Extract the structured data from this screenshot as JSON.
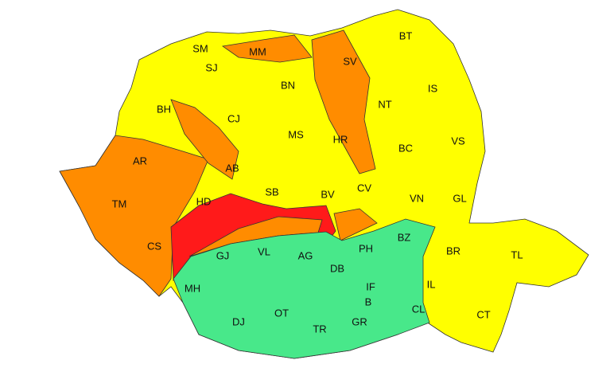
{
  "colors": {
    "yellow": "#ffff00",
    "orange": "#ff8c00",
    "red": "#ff1a1a",
    "green": "#48e88a",
    "background": "#ffffff",
    "border": "#333333"
  },
  "counties": [
    {
      "code": "SM",
      "level": "yellow"
    },
    {
      "code": "MM",
      "level": "orange"
    },
    {
      "code": "SV",
      "level": "orange"
    },
    {
      "code": "BT",
      "level": "yellow"
    },
    {
      "code": "SJ",
      "level": "yellow"
    },
    {
      "code": "BN",
      "level": "yellow"
    },
    {
      "code": "IS",
      "level": "yellow"
    },
    {
      "code": "BH",
      "level": "yellow"
    },
    {
      "code": "CJ",
      "level": "yellow"
    },
    {
      "code": "NT",
      "level": "yellow"
    },
    {
      "code": "MS",
      "level": "yellow"
    },
    {
      "code": "HR",
      "level": "orange"
    },
    {
      "code": "BC",
      "level": "yellow"
    },
    {
      "code": "VS",
      "level": "yellow"
    },
    {
      "code": "AR",
      "level": "orange"
    },
    {
      "code": "AB",
      "level": "orange"
    },
    {
      "code": "TM",
      "level": "orange"
    },
    {
      "code": "HD",
      "level": "yellow"
    },
    {
      "code": "SB",
      "level": "yellow"
    },
    {
      "code": "BV",
      "level": "yellow"
    },
    {
      "code": "CV",
      "level": "yellow"
    },
    {
      "code": "VN",
      "level": "yellow"
    },
    {
      "code": "GL",
      "level": "yellow"
    },
    {
      "code": "CS",
      "level": "orange"
    },
    {
      "code": "BZ",
      "level": "green"
    },
    {
      "code": "GJ",
      "level": "green"
    },
    {
      "code": "VL",
      "level": "green"
    },
    {
      "code": "AG",
      "level": "green"
    },
    {
      "code": "PH",
      "level": "green"
    },
    {
      "code": "BR",
      "level": "yellow"
    },
    {
      "code": "TL",
      "level": "yellow"
    },
    {
      "code": "DB",
      "level": "green"
    },
    {
      "code": "MH",
      "level": "green"
    },
    {
      "code": "IF",
      "level": "green"
    },
    {
      "code": "IL",
      "level": "green"
    },
    {
      "code": "B",
      "level": "green"
    },
    {
      "code": "DJ",
      "level": "green"
    },
    {
      "code": "OT",
      "level": "green"
    },
    {
      "code": "CL",
      "level": "green"
    },
    {
      "code": "CT",
      "level": "yellow"
    },
    {
      "code": "TR",
      "level": "green"
    },
    {
      "code": "GR",
      "level": "green"
    }
  ]
}
